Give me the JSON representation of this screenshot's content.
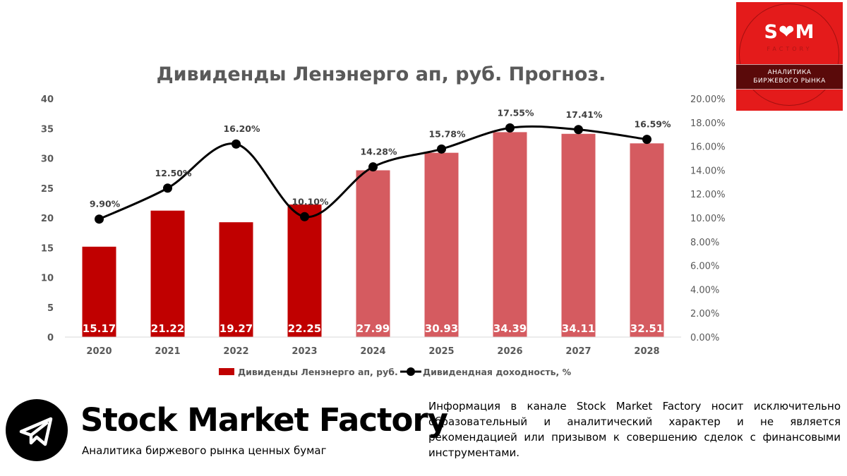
{
  "chart_data": {
    "type": "bar",
    "title": "Дивиденды Ленэнерго ап, руб. Прогноз.",
    "categories": [
      "2020",
      "2021",
      "2022",
      "2023",
      "2024",
      "2025",
      "2026",
      "2027",
      "2028"
    ],
    "series": [
      {
        "name": "Дивиденды Ленэнерго ап, руб.",
        "type": "bar",
        "axis": "left",
        "values": [
          15.17,
          21.22,
          19.27,
          22.25,
          27.99,
          30.93,
          34.39,
          34.11,
          32.51
        ],
        "labels": [
          "15.17",
          "21.22",
          "19.27",
          "22.25",
          "27.99",
          "30.93",
          "34.39",
          "34.11",
          "32.51"
        ],
        "forecast_from_index": 4
      },
      {
        "name": "Дивидендная доходность, %",
        "type": "line",
        "axis": "right",
        "values": [
          9.9,
          12.5,
          16.2,
          10.1,
          14.28,
          15.78,
          17.55,
          17.41,
          16.59
        ],
        "labels": [
          "9.90%",
          "12.50%",
          "16.20%",
          "10.10%",
          "14.28%",
          "15.78%",
          "17.55%",
          "17.41%",
          "16.59%"
        ]
      }
    ],
    "y_left": {
      "ylim": [
        0,
        40
      ],
      "ticks": [
        "0",
        "5",
        "10",
        "15",
        "20",
        "25",
        "30",
        "35",
        "40"
      ]
    },
    "y_right": {
      "ylim": [
        0,
        20
      ],
      "ticks": [
        "0.00%",
        "2.00%",
        "4.00%",
        "6.00%",
        "8.00%",
        "10.00%",
        "12.00%",
        "14.00%",
        "16.00%",
        "18.00%",
        "20.00%"
      ]
    },
    "legend_position": "bottom",
    "grid": false,
    "colors": {
      "actual_bar": "#c00000",
      "forecast_bar": "#d55b60",
      "line": "#000000",
      "axis_text": "#595959",
      "title": "#595959"
    }
  },
  "logo": {
    "mark": "S❤M",
    "sub": "FACTORY",
    "band_line1": "АНАЛИТИКА",
    "band_line2": "БИРЖЕВОГО РЫНКА",
    "bg_color": "#e41b1b"
  },
  "footer": {
    "telegram_icon": "telegram-icon",
    "brand_name": "Stock Market Factory",
    "brand_tagline": "Аналитика биржевого рынка ценных бумаг",
    "disclaimer": "Информация в канале Stock Market Factory носит исключительно образовательный и аналитический характер и не является рекомендацией или призывом к совершению сделок с финансовыми инструментами."
  }
}
